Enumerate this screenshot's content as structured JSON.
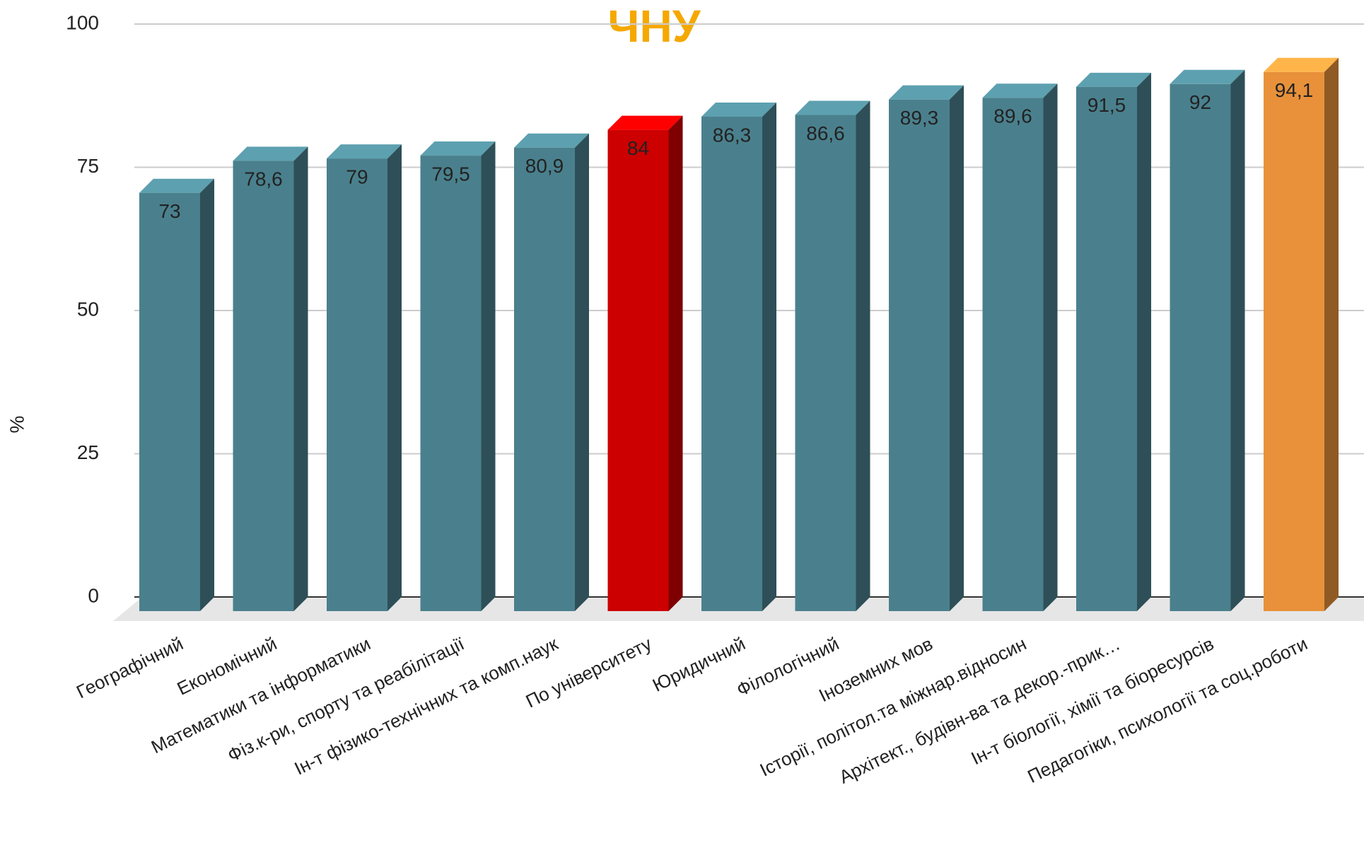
{
  "chart_data": {
    "type": "bar",
    "title": "ЧНУ",
    "ylabel": "%",
    "categories": [
      "Географічний",
      "Економічний",
      "Математики та інформатики",
      "Фіз.к-ри, спорту та реабілітації",
      "Ін-т фізико-технічних та комп.наук",
      "По університету",
      "Юридичний",
      "Філологічний",
      "Іноземних мов",
      "Історії, політол.та міжнар.відносин",
      "Архітект., будівн-ва та декор.-прик…",
      "Ін-т біології, хімії та біоресурсів",
      "Педагогіки, психології та соц.роботи"
    ],
    "values": [
      73,
      78.6,
      79,
      79.5,
      80.9,
      84,
      86.3,
      86.6,
      89.3,
      89.6,
      91.5,
      92,
      94.1
    ],
    "value_labels": [
      "73",
      "78,6",
      "79",
      "79,5",
      "80,9",
      "84",
      "86,3",
      "86,6",
      "89,3",
      "89,6",
      "91,5",
      "92",
      "94,1"
    ],
    "colors": [
      "#4a808d",
      "#4a808d",
      "#4a808d",
      "#4a808d",
      "#4a808d",
      "#cc0000",
      "#4a808d",
      "#4a808d",
      "#4a808d",
      "#4a808d",
      "#4a808d",
      "#4a808d",
      "#e8913a"
    ],
    "ylim": [
      0,
      100
    ],
    "yticks": [
      0,
      25,
      50,
      75,
      100
    ],
    "grid": true
  }
}
